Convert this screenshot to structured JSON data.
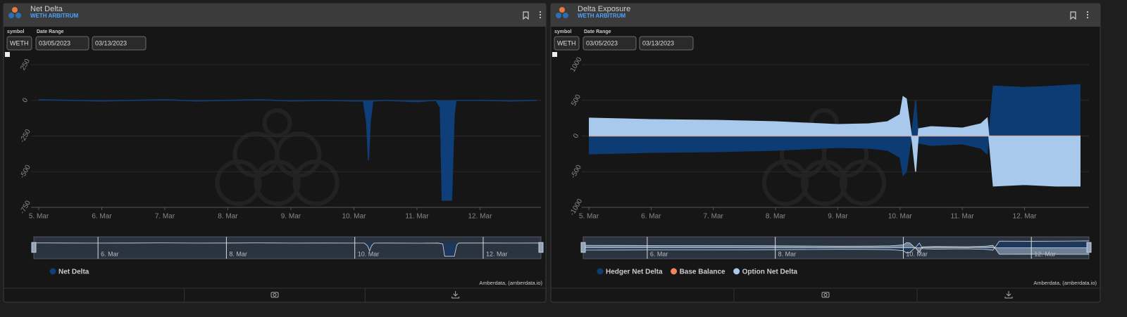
{
  "panels": [
    {
      "title": "Net Delta",
      "subtitle": "WETH ARBITRUM",
      "symbol_label": "symbol",
      "date_range_label": "Date Range",
      "symbol": "WETH",
      "start_date": "03/05/2023",
      "end_date": "03/13/2023",
      "credit": "Amberdata, (amberdata.io)"
    },
    {
      "title": "Delta Exposure",
      "subtitle": "WETH ARBITRUM",
      "symbol_label": "symbol",
      "date_range_label": "Date Range",
      "symbol": "WETH",
      "start_date": "03/05/2023",
      "end_date": "03/13/2023",
      "credit": "Amberdata, (amberdata.io)"
    }
  ],
  "chart_data": [
    {
      "type": "area",
      "x": [
        0,
        0.5,
        1,
        1.5,
        2,
        2.5,
        3,
        3.5,
        4,
        4.5,
        5,
        5.15,
        5.2,
        5.23,
        5.26,
        5.3,
        5.5,
        6,
        6.3,
        6.37,
        6.4,
        6.55,
        6.59,
        6.62,
        7,
        7.5,
        7.9
      ],
      "series": [
        {
          "name": "Net Delta",
          "color": "#0e3f7a",
          "style": "area",
          "values": [
            5,
            0,
            -5,
            0,
            5,
            -5,
            0,
            5,
            -5,
            0,
            -5,
            -5,
            -150,
            -420,
            -150,
            -5,
            0,
            -10,
            0,
            -50,
            -700,
            -700,
            -100,
            0,
            0,
            -5,
            0
          ]
        }
      ],
      "xlim": [
        0,
        7.9
      ],
      "xticks": [
        {
          "value": 0,
          "label": "5. Mar"
        },
        {
          "value": 1,
          "label": "6. Mar"
        },
        {
          "value": 2,
          "label": "7. Mar"
        },
        {
          "value": 3,
          "label": "8. Mar"
        },
        {
          "value": 4,
          "label": "9. Mar"
        },
        {
          "value": 5,
          "label": "10. Mar"
        },
        {
          "value": 6,
          "label": "11. Mar"
        },
        {
          "value": 7,
          "label": "12. Mar"
        }
      ],
      "ylim": [
        -750,
        250
      ],
      "yticks": [
        250,
        0,
        -250,
        -500,
        -750
      ],
      "navigator_ticks": [
        {
          "value": 1,
          "label": "6. Mar"
        },
        {
          "value": 3,
          "label": "8. Mar"
        },
        {
          "value": 5,
          "label": "10. Mar"
        },
        {
          "value": 7,
          "label": "12. Mar"
        }
      ]
    },
    {
      "type": "area",
      "x": [
        0,
        1,
        2,
        3,
        4,
        4.5,
        4.8,
        5,
        5.05,
        5.1,
        5.2,
        5.25,
        5.3,
        5.5,
        6,
        6.3,
        6.4,
        6.5,
        7,
        7.5,
        7.9
      ],
      "series": [
        {
          "name": "Hedger Net Delta",
          "color": "#0d3c74",
          "style": "area",
          "values": [
            -250,
            -230,
            -220,
            -200,
            -160,
            -170,
            -200,
            -300,
            -550,
            -500,
            100,
            500,
            -100,
            -130,
            -110,
            -170,
            -250,
            700,
            680,
            700,
            720
          ]
        },
        {
          "name": "Base Balance",
          "color": "#f0845a",
          "style": "line",
          "values": [
            0,
            0,
            0,
            0,
            0,
            0,
            0,
            0,
            0,
            0,
            0,
            0,
            0,
            0,
            0,
            0,
            0,
            0,
            0,
            0,
            0
          ]
        },
        {
          "name": "Option Net Delta",
          "color": "#a9c9ec",
          "style": "area",
          "values": [
            250,
            230,
            220,
            200,
            160,
            170,
            200,
            300,
            550,
            520,
            -100,
            -500,
            100,
            130,
            110,
            170,
            250,
            -700,
            -680,
            -700,
            -700
          ]
        }
      ],
      "xlim": [
        0,
        7.9
      ],
      "xticks": [
        {
          "value": 0,
          "label": "5. Mar"
        },
        {
          "value": 1,
          "label": "6. Mar"
        },
        {
          "value": 2,
          "label": "7. Mar"
        },
        {
          "value": 3,
          "label": "8. Mar"
        },
        {
          "value": 4,
          "label": "9. Mar"
        },
        {
          "value": 5,
          "label": "10. Mar"
        },
        {
          "value": 6,
          "label": "11. Mar"
        },
        {
          "value": 7,
          "label": "12. Mar"
        }
      ],
      "ylim": [
        -1000,
        1000
      ],
      "yticks": [
        1000,
        500,
        0,
        -500,
        -1000
      ],
      "navigator_ticks": [
        {
          "value": 1,
          "label": "6. Mar"
        },
        {
          "value": 3,
          "label": "8. Mar"
        },
        {
          "value": 5,
          "label": "10. Mar"
        },
        {
          "value": 7,
          "label": "12. Mar"
        }
      ]
    }
  ]
}
